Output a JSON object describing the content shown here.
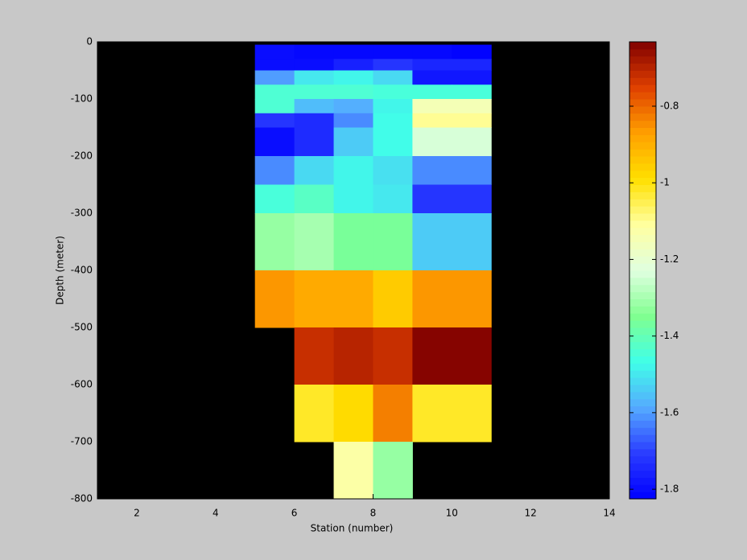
{
  "chart_data": {
    "type": "heatmap",
    "x_label": "Station (number)",
    "y_label": "Depth (meter)",
    "x_edges": [
      5,
      6,
      7,
      8,
      9,
      10,
      11
    ],
    "y_edges": [
      -5,
      -30,
      -50,
      -75,
      -100,
      -125,
      -150,
      -200,
      -250,
      -300,
      -400,
      -500,
      -600,
      -700,
      -800
    ],
    "values": [
      [
        -1.8,
        -1.81,
        -1.81,
        -1.81,
        -1.81,
        -1.82
      ],
      [
        -1.8,
        -1.8,
        -1.76,
        -1.72,
        -1.75,
        -1.75
      ],
      [
        -1.6,
        -1.5,
        -1.48,
        -1.52,
        -1.78,
        -1.78
      ],
      [
        -1.44,
        -1.44,
        -1.44,
        -1.45,
        -1.45,
        -1.45
      ],
      [
        -1.44,
        -1.56,
        -1.58,
        -1.48,
        -1.15,
        -1.15
      ],
      [
        -1.72,
        -1.74,
        -1.62,
        -1.47,
        -1.1,
        -1.1
      ],
      [
        -1.8,
        -1.74,
        -1.54,
        -1.47,
        -1.24,
        -1.24
      ],
      [
        -1.62,
        -1.52,
        -1.48,
        -1.51,
        -1.62,
        -1.62
      ],
      [
        -1.45,
        -1.42,
        -1.48,
        -1.5,
        -1.72,
        -1.72
      ],
      [
        -1.32,
        -1.3,
        -1.36,
        -1.36,
        -1.54,
        -1.54
      ],
      [
        -0.86,
        -0.89,
        -0.89,
        -0.95,
        -0.86,
        -0.86
      ],
      [
        null,
        -0.72,
        -0.7,
        -0.72,
        -0.64,
        -0.64
      ],
      [
        null,
        -1.02,
        -0.98,
        -0.83,
        -1.02,
        -1.02
      ],
      [
        null,
        null,
        -1.12,
        -1.32,
        null,
        null
      ]
    ],
    "xlim": [
      1,
      14
    ],
    "xticks": [
      2,
      4,
      6,
      8,
      10,
      12,
      14
    ],
    "ylim": [
      -800,
      0
    ],
    "yticks": [
      -800,
      -700,
      -600,
      -500,
      -400,
      -300,
      -200,
      -100,
      0
    ],
    "clim": [
      -1.825,
      -0.632
    ],
    "cticks": [
      -1.8,
      -1.6,
      -1.4,
      -1.2,
      -1,
      -0.8
    ],
    "colormap": [
      "#0000ff",
      "#2a3cff",
      "#55aaff",
      "#40ffe8",
      "#80ff90",
      "#e0ffe0",
      "#ffffa0",
      "#ffe000",
      "#ffa000",
      "#e04000",
      "#800000"
    ],
    "missing_color": "#000000"
  }
}
